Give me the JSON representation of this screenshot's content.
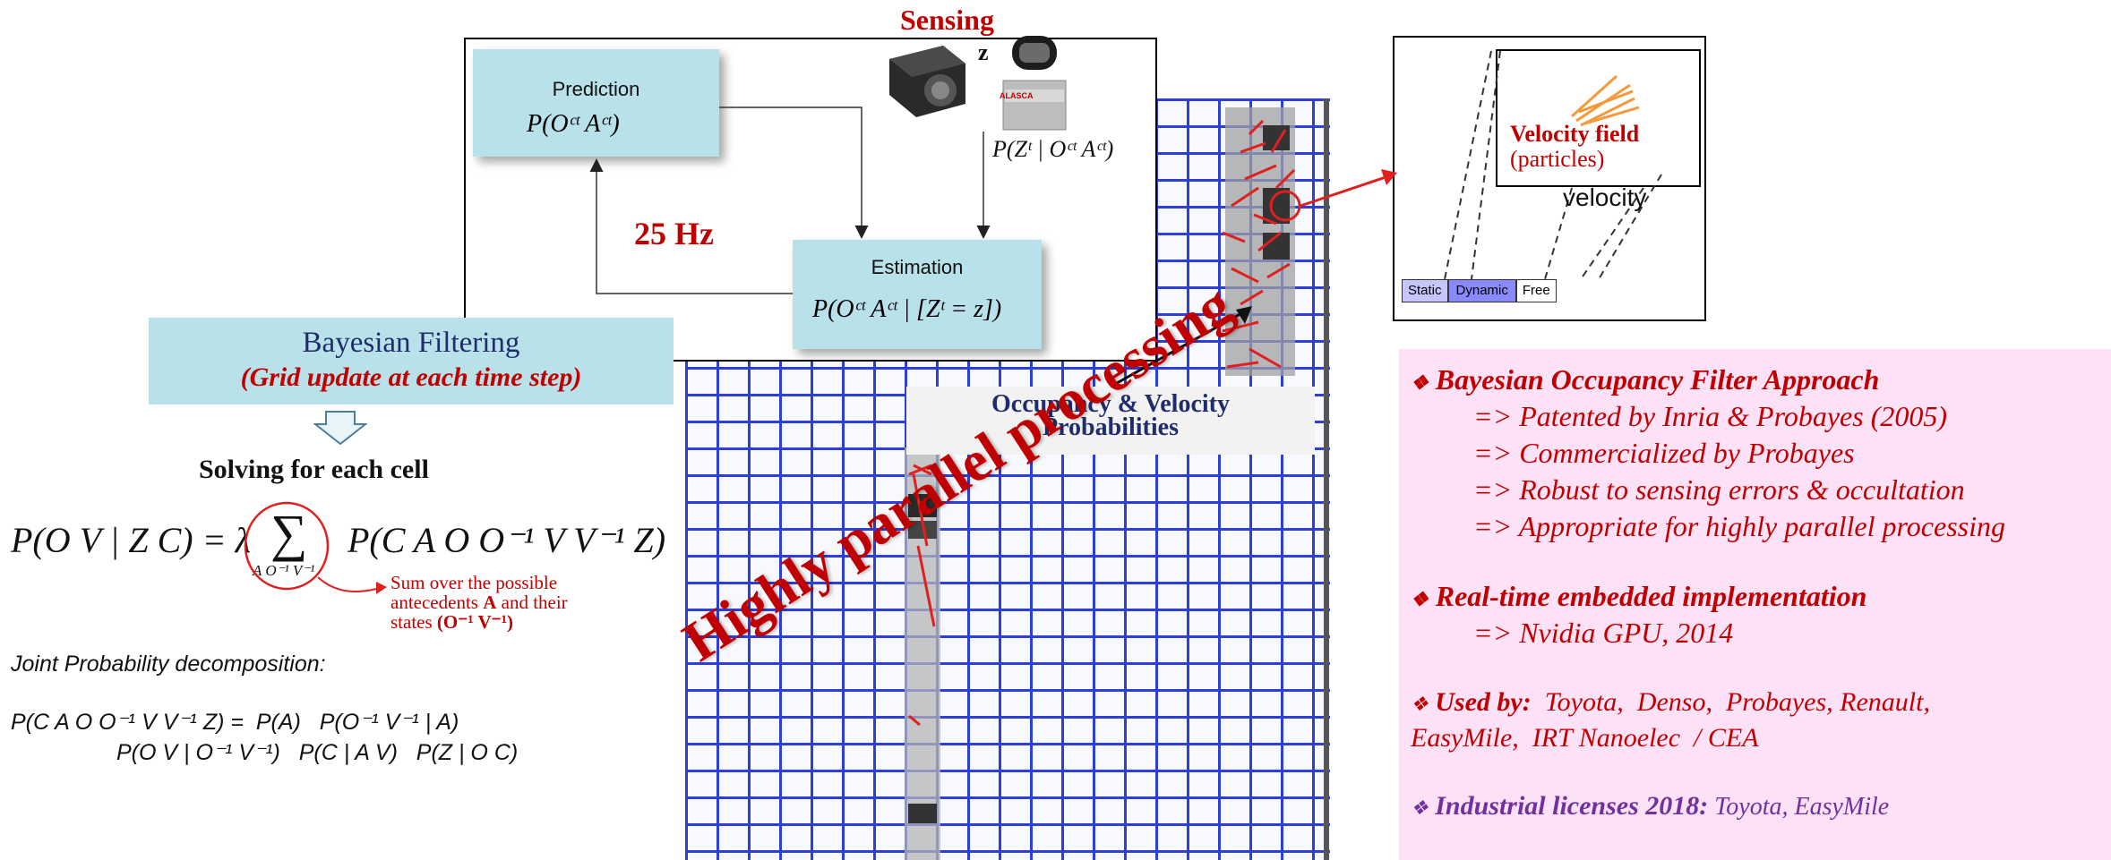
{
  "sensing": {
    "title": "Sensing",
    "z_label": "z",
    "lidar_brand": "ALASCA",
    "sensor_model": "P(Zᵗ | Oᶜᵗ Aᶜᵗ)"
  },
  "prediction": {
    "title": "Prediction",
    "formula": "P(Oᶜᵗ Aᶜᵗ)"
  },
  "estimation": {
    "title": "Estimation",
    "formula": "P(Oᶜᵗ Aᶜᵗ | [Zᵗ = z])"
  },
  "rate": "25 Hz",
  "bayes": {
    "title": "Bayesian Filtering",
    "subtitle": "(Grid update at each time step)"
  },
  "solving": "Solving for each cell",
  "main_equation": {
    "lhs": "P(O V | Z C) = λ",
    "sum": "∑",
    "sum_index": "A O⁻¹ V⁻¹",
    "rhs": "P(C A O O⁻¹ V V⁻¹ Z)"
  },
  "sum_note": {
    "line1": "Sum over the possible",
    "line2_pre": "antecedents ",
    "line2_bold": "A",
    "line2_post": " and their",
    "line3_pre": "states ",
    "line3_bold": "(O⁻¹ V⁻¹)"
  },
  "joint": {
    "heading": "Joint Probability decomposition:",
    "line1": "P(C A O O⁻¹ V V⁻¹ Z) =  P(A)   P(O⁻¹ V⁻¹ | A)",
    "line2": "P(O V | O⁻¹ V⁻¹)   P(C | A V)   P(Z | O C)"
  },
  "occupancy_label": {
    "line1": "Occupancy & Velocity",
    "line2": "Probabilities"
  },
  "diagonal_text": "Highly parallel processing",
  "velocity_panel": {
    "title": "Velocity field",
    "subtitle": "(particles)",
    "axis_label": "velocity",
    "states": [
      "Static",
      "Dynamic",
      "Free"
    ]
  },
  "features": {
    "bullet1": "Bayesian Occupancy Filter Approach",
    "sub1": [
      "=> Patented by Inria & Probayes (2005)",
      "=> Commercialized by Probayes",
      "=> Robust to sensing errors & occultation",
      "=> Appropriate for highly parallel processing"
    ],
    "bullet2": "Real-time embedded implementation",
    "sub2": [
      "=> Nvidia GPU, 2014"
    ],
    "bullet3_bold": "Used by:",
    "bullet3_rest": "  Toyota,  Denso,  Probayes, Renault,",
    "bullet3_line2": "EasyMile,  IRT Nanoelec  / CEA",
    "bullet4_bold": "Industrial licenses 2018:",
    "bullet4_rest": " Toyota, EasyMile"
  },
  "colors": {
    "grid_line": "#2e3fd6",
    "teal_box": "#b9e1e9",
    "pink_panel": "#fde2f7",
    "red_text": "#c00000",
    "purple_text": "#7030a0",
    "navy_text": "#1f2d6b"
  },
  "icons": {
    "bullet": "diamond-bullet-icon",
    "down_arrow": "down-arrow-icon",
    "camera": "camera-icon",
    "lidar": "lidar-icon"
  }
}
